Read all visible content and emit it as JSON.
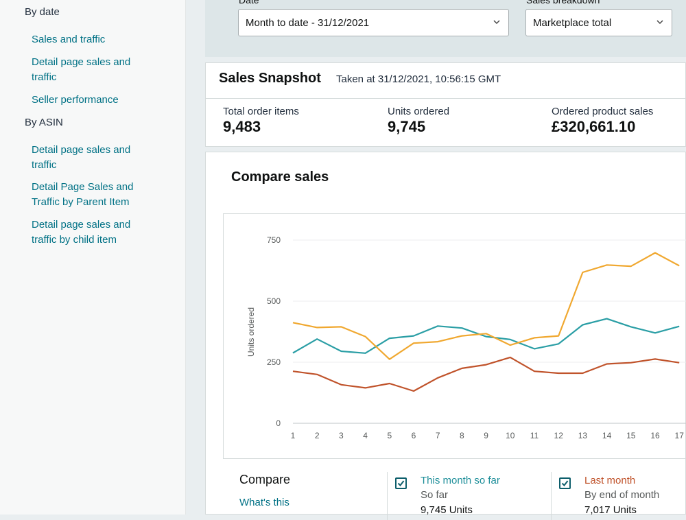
{
  "sidebar": {
    "by_date_heading": "By date",
    "by_date_links": [
      "Sales and traffic",
      "Detail page sales and traffic",
      "Seller performance"
    ],
    "by_asin_heading": "By ASIN",
    "by_asin_links": [
      "Detail page sales and traffic",
      "Detail Page Sales and Traffic by Parent Item",
      "Detail page sales and traffic by child item"
    ]
  },
  "filters": {
    "date_label": "Date",
    "date_value": "Month to date - 31/12/2021",
    "breakdown_label": "Sales breakdown",
    "breakdown_value": "Marketplace total"
  },
  "snapshot": {
    "title": "Sales Snapshot",
    "taken": "Taken at 31/12/2021, 10:56:15 GMT",
    "metrics": [
      {
        "label": "Total order items",
        "value": "9,483"
      },
      {
        "label": "Units ordered",
        "value": "9,745"
      },
      {
        "label": "Ordered product sales",
        "value": "£320,661.10"
      }
    ]
  },
  "compare": {
    "title": "Compare sales",
    "legend_title": "Compare",
    "whats_this": "What's this",
    "series_legend": [
      {
        "name": "This month so far",
        "sub": "So far",
        "value": "9,745 Units",
        "color": "#1f8f9a",
        "checked": true
      },
      {
        "name": "Last month",
        "sub": "By end of month",
        "value": "7,017 Units",
        "color": "#c0532b",
        "checked": true
      }
    ]
  },
  "chart_data": {
    "type": "line",
    "ylabel": "Units ordered",
    "ylim": [
      0,
      750
    ],
    "yticks": [
      0,
      250,
      500,
      750
    ],
    "x": [
      1,
      2,
      3,
      4,
      5,
      6,
      7,
      8,
      9,
      10,
      11,
      12,
      13,
      14,
      15,
      16,
      17
    ],
    "series": [
      {
        "name": "This month so far",
        "color": "#2a9ea5",
        "values": [
          288,
          345,
          295,
          287,
          348,
          358,
          398,
          390,
          355,
          343,
          305,
          325,
          403,
          428,
          395,
          370,
          397
        ]
      },
      {
        "color": "#f0a830",
        "values": [
          412,
          392,
          395,
          355,
          262,
          328,
          334,
          358,
          367,
          320,
          350,
          358,
          618,
          648,
          643,
          698,
          645
        ]
      },
      {
        "name": "Last month",
        "color": "#c0532b",
        "values": [
          213,
          200,
          158,
          145,
          163,
          132,
          186,
          225,
          240,
          270,
          213,
          205,
          205,
          243,
          248,
          263,
          248
        ]
      }
    ]
  }
}
